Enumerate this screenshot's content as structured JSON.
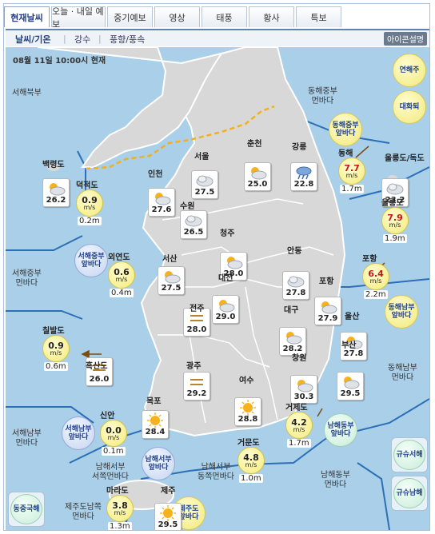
{
  "tabs": [
    {
      "label": "현재날씨",
      "active": true
    },
    {
      "label": "오늘 · 내일 예보",
      "active": false
    },
    {
      "label": "중기예보",
      "active": false
    },
    {
      "label": "영상",
      "active": false
    },
    {
      "label": "태풍",
      "active": false
    },
    {
      "label": "황사",
      "active": false
    },
    {
      "label": "특보",
      "active": false
    }
  ],
  "subtabs": [
    {
      "label": "날씨/기온",
      "active": true
    },
    {
      "label": "강수",
      "active": false
    },
    {
      "label": "풍향/풍속",
      "active": false
    }
  ],
  "icon_help_label": "아이콘설명",
  "timestamp": "08월 11일 10:00시 현재",
  "sea_labels": {
    "west_north": "서해북부",
    "west_mid": "서해중부\n먼바다",
    "west_south": "서해남부\n먼바다",
    "east_mid": "동해중부\n먼바다",
    "east_south": "동해남부\n먼바다",
    "south_west_near": "남해서부\n서쪽먼바다",
    "south_west_east": "남해서부\n동쪽먼바다",
    "jeju_south": "제주도남쪽\n먼바다",
    "south_east": "남해동부\n먼바다"
  },
  "zones": {
    "yeonhaeju": "연해주",
    "tsushima": "대화퇴",
    "east_mid_near": "동해중부\n앞바다",
    "east_south_near": "동해남부\n앞바다",
    "west_mid_near": "서해중부\n앞바다",
    "west_south_near": "서해남부\n앞바다",
    "south_west_near": "남해서부\n앞바다",
    "south_east_near": "남해동부\n앞바다",
    "jeju_near": "제주도\n앞바다",
    "east_china": "동중국해",
    "kyushu_west": "규슈서해",
    "kyushu_south": "규슈남해"
  },
  "cities": [
    {
      "name": "백령도",
      "temp": "26.2",
      "icon": "partly-cloudy-icon"
    },
    {
      "name": "인천",
      "temp": "27.6",
      "icon": "partly-cloudy-icon"
    },
    {
      "name": "서울",
      "temp": "27.5",
      "icon": "cloudy-icon"
    },
    {
      "name": "춘천",
      "temp": "25.0",
      "icon": "partly-cloudy-icon"
    },
    {
      "name": "강릉",
      "temp": "22.8",
      "icon": "rain-icon"
    },
    {
      "name": "울릉도/독도",
      "temp": "23.2",
      "icon": "cloudy-icon"
    },
    {
      "name": "수원",
      "temp": "26.5",
      "icon": "cloudy-icon"
    },
    {
      "name": "청주",
      "temp": "28.0",
      "icon": "partly-cloudy-icon"
    },
    {
      "name": "서산",
      "temp": "27.5",
      "icon": "partly-cloudy-icon"
    },
    {
      "name": "대전",
      "temp": "29.0",
      "icon": "partly-cloudy-icon"
    },
    {
      "name": "안동",
      "temp": "27.8",
      "icon": "cloudy-icon"
    },
    {
      "name": "포항",
      "temp": "27.9",
      "icon": "partly-cloudy-icon"
    },
    {
      "name": "전주",
      "temp": "28.0",
      "icon": "haze-icon"
    },
    {
      "name": "대구",
      "temp": "28.2",
      "icon": "partly-cloudy-icon"
    },
    {
      "name": "울산",
      "temp": "27.8",
      "icon": "partly-cloudy-icon"
    },
    {
      "name": "흑산도",
      "temp": "26.0",
      "icon": "haze-icon"
    },
    {
      "name": "광주",
      "temp": "29.2",
      "icon": "haze-icon"
    },
    {
      "name": "부산",
      "temp": "29.5",
      "icon": "partly-cloudy-icon"
    },
    {
      "name": "창원",
      "temp": "30.3",
      "icon": "partly-cloudy-icon"
    },
    {
      "name": "목포",
      "temp": "28.4",
      "icon": "sunny-icon"
    },
    {
      "name": "여수",
      "temp": "28.8",
      "icon": "sunny-icon"
    },
    {
      "name": "제주",
      "temp": "29.5",
      "icon": "sunny-icon"
    }
  ],
  "waves": [
    {
      "name": "덕적도",
      "height": "0.9",
      "wave": "0.2m"
    },
    {
      "name": "동해",
      "height": "7.7",
      "wave": "1.7m",
      "red": true
    },
    {
      "name": "울릉도",
      "height": "7.9",
      "wave": "1.9m",
      "red": true
    },
    {
      "name": "외연도",
      "height": "0.6",
      "wave": "0.4m"
    },
    {
      "name": "포항",
      "height": "6.4",
      "wave": "2.2m",
      "red": true
    },
    {
      "name": "칠발도",
      "height": "0.9",
      "wave": "0.6m"
    },
    {
      "name": "신안",
      "height": "0.0",
      "wave": "0.1m"
    },
    {
      "name": "거제도",
      "height": "4.2",
      "wave": "1.7m"
    },
    {
      "name": "거문도",
      "height": "4.8",
      "wave": "1.0m"
    },
    {
      "name": "마라도",
      "height": "3.8",
      "wave": "1.3m"
    }
  ],
  "wind_unit": "m/s",
  "colors": {
    "tab_active": "#1f3f87",
    "sea": "#a9cfe9",
    "land": "#d9d9d9",
    "boundary": "#3a73b5",
    "dmz": "#f0b020",
    "red_text": "#c4161c"
  }
}
